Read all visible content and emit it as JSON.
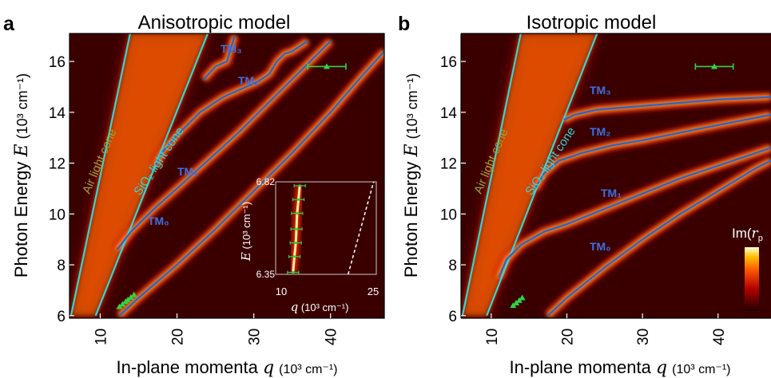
{
  "chart_data": [
    {
      "panel_letter": "a",
      "title": "Anisotropic model",
      "type": "heatmap",
      "xlabel": "In-plane momenta",
      "xvar": "q",
      "xunit": "(10³ cm⁻¹)",
      "ylabel_main": "Photon Energy",
      "yvar": "E",
      "yunit": "(10³ cm⁻¹)",
      "xlim": [
        6,
        47
      ],
      "ylim": [
        5.9,
        17.1
      ],
      "xticks": [
        "10",
        "20",
        "30",
        "40"
      ],
      "yticks": [
        "6",
        "8",
        "10",
        "12",
        "14",
        "16"
      ],
      "cone_labels": [
        "Air light cone",
        "SiO₂ light cone"
      ],
      "light_cones": [
        {
          "name": "Air light cone",
          "points": [
            [
              6.2,
              6.0
            ],
            [
              13.9,
              17.1
            ]
          ]
        },
        {
          "name": "SiO₂ light cone",
          "points": [
            [
              9.4,
              6.0
            ],
            [
              24.0,
              17.1
            ]
          ]
        }
      ],
      "mode_labels": [
        "TM₀",
        "TM₁",
        "TM₂",
        "TM₃"
      ],
      "modes": [
        {
          "name": "TM₀",
          "points": [
            [
              12.5,
              6.0
            ],
            [
              15,
              6.7
            ],
            [
              20,
              8.0
            ],
            [
              25,
              9.4
            ],
            [
              30,
              10.9
            ],
            [
              35,
              12.4
            ],
            [
              40,
              14.0
            ],
            [
              44,
              15.4
            ],
            [
              47,
              16.4
            ]
          ]
        },
        {
          "name": "TM₁",
          "points": [
            [
              12.2,
              8.6
            ],
            [
              14,
              9.3
            ],
            [
              17,
              10.2
            ],
            [
              20,
              11.0
            ],
            [
              24,
              12.1
            ],
            [
              28,
              13.2
            ],
            [
              31,
              14.1
            ],
            [
              34,
              15.0
            ],
            [
              37,
              15.9
            ],
            [
              40,
              16.8
            ]
          ]
        },
        {
          "name": "TM₂",
          "points": [
            [
              17.2,
              11.9
            ],
            [
              18,
              12.4
            ],
            [
              20,
              13.1
            ],
            [
              23,
              14.0
            ],
            [
              26,
              14.6
            ],
            [
              29,
              15.0
            ],
            [
              30.5,
              15.2
            ],
            [
              32,
              15.5
            ],
            [
              33,
              16.0
            ],
            [
              34,
              16.3
            ],
            [
              35,
              16.4
            ],
            [
              36,
              16.6
            ],
            [
              37,
              16.8
            ]
          ]
        },
        {
          "name": "TM₃",
          "points": [
            [
              23.5,
              15.3
            ],
            [
              25,
              15.8
            ],
            [
              26.5,
              16.0
            ],
            [
              27,
              16.5
            ],
            [
              27.5,
              17.0
            ]
          ]
        }
      ],
      "experimental_points": [
        [
          12.5,
          6.35
        ],
        [
          12.9,
          6.45
        ],
        [
          13.3,
          6.55
        ],
        [
          13.6,
          6.62
        ],
        [
          14.0,
          6.72
        ],
        [
          14.4,
          6.82
        ]
      ],
      "error_bar_point": {
        "q": 39.5,
        "E": 15.8,
        "q_err": 2.5
      },
      "inset": {
        "xlim": [
          10,
          25
        ],
        "ylim": [
          6.35,
          6.82
        ],
        "xticks": [
          "10",
          "25"
        ],
        "yticks": [
          "6.82",
          "6.35"
        ],
        "xlabel_var": "q",
        "xlabel_unit": "(10³ cm⁻¹)",
        "ylabel_var": "E",
        "ylabel_unit": "(10³ cm⁻¹)",
        "measured_q": [
          12.6,
          12.8,
          13.0,
          13.1,
          13.2,
          13.4,
          13.6
        ],
        "measured_E": [
          6.36,
          6.44,
          6.51,
          6.58,
          6.66,
          6.73,
          6.8
        ]
      }
    },
    {
      "panel_letter": "b",
      "title": "Isotropic model",
      "type": "heatmap",
      "xlabel": "In-plane momenta",
      "xvar": "q",
      "xunit": "(10³ cm⁻¹)",
      "ylabel_main": "Photon Energy",
      "yvar": "E",
      "yunit": "(10³ cm⁻¹)",
      "xlim": [
        6,
        47
      ],
      "ylim": [
        5.9,
        17.1
      ],
      "xticks": [
        "10",
        "20",
        "30",
        "40"
      ],
      "yticks": [
        "6",
        "8",
        "10",
        "12",
        "14",
        "16"
      ],
      "cone_labels": [
        "Air light cone",
        "SiO₂ light cone"
      ],
      "light_cones": [
        {
          "name": "Air light cone",
          "points": [
            [
              6.2,
              6.0
            ],
            [
              13.9,
              17.1
            ]
          ]
        },
        {
          "name": "SiO₂ light cone",
          "points": [
            [
              9.4,
              6.0
            ],
            [
              24.0,
              17.1
            ]
          ]
        }
      ],
      "mode_labels": [
        "TM₀",
        "TM₁",
        "TM₂",
        "TM₃"
      ],
      "modes": [
        {
          "name": "TM₀",
          "points": [
            [
              17.5,
              6.0
            ],
            [
              20,
              6.7
            ],
            [
              25,
              7.9
            ],
            [
              30,
              9.0
            ],
            [
              35,
              10.0
            ],
            [
              40,
              10.9
            ],
            [
              45,
              11.8
            ],
            [
              47,
              12.1
            ]
          ]
        },
        {
          "name": "TM₁",
          "points": [
            [
              11.0,
              7.5
            ],
            [
              12,
              8.2
            ],
            [
              14,
              8.8
            ],
            [
              17,
              9.3
            ],
            [
              20,
              9.6
            ],
            [
              25,
              10.2
            ],
            [
              30,
              10.8
            ],
            [
              35,
              11.4
            ],
            [
              40,
              11.9
            ],
            [
              45,
              12.4
            ],
            [
              47,
              12.6
            ]
          ]
        },
        {
          "name": "TM₂",
          "points": [
            [
              15.8,
              11.0
            ],
            [
              17,
              11.6
            ],
            [
              19,
              12.1
            ],
            [
              22,
              12.4
            ],
            [
              26,
              12.7
            ],
            [
              30,
              12.9
            ],
            [
              35,
              13.2
            ],
            [
              40,
              13.5
            ],
            [
              47,
              13.9
            ]
          ]
        },
        {
          "name": "TM₃",
          "points": [
            [
              19.6,
              13.7
            ],
            [
              21,
              13.9
            ],
            [
              24,
              14.1
            ],
            [
              28,
              14.2
            ],
            [
              32,
              14.3
            ],
            [
              40,
              14.5
            ],
            [
              47,
              14.6
            ]
          ]
        }
      ],
      "experimental_points": [
        [
          12.9,
          6.4
        ],
        [
          13.3,
          6.5
        ],
        [
          13.7,
          6.6
        ],
        [
          14.1,
          6.7
        ]
      ],
      "error_bar_point": {
        "q": 39.5,
        "E": 15.8,
        "q_err": 2.5
      },
      "colorbar_label_prefix": "Im(",
      "colorbar_label_var": "r",
      "colorbar_label_sub": "p"
    }
  ],
  "colors": {
    "mode_line": "#2c62c8",
    "cone_line": "#33d6d6",
    "experimental": "#2fd445",
    "label_text": "#3f6fe0",
    "cone_text": "#9aa23a",
    "background": "#3a0000"
  }
}
